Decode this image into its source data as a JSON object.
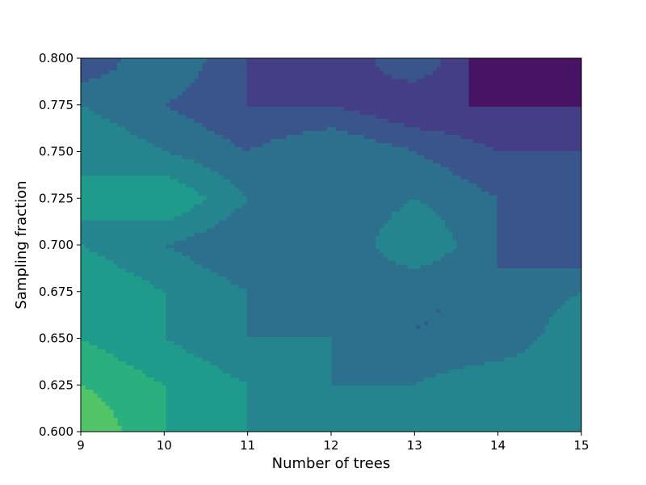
{
  "chart_data": {
    "type": "contourf",
    "title": "",
    "xlabel": "Number of trees",
    "ylabel": "Sampling fraction",
    "xlim": [
      9,
      15
    ],
    "ylim": [
      0.6,
      0.8
    ],
    "x": [
      9,
      10,
      11,
      12,
      13,
      14,
      15
    ],
    "y": [
      0.6,
      0.625,
      0.65,
      0.675,
      0.7,
      0.725,
      0.75,
      0.775,
      0.8
    ],
    "z": [
      [
        9,
        7,
        6,
        5,
        6,
        6,
        5
      ],
      [
        8,
        7,
        6,
        5,
        5,
        6,
        6
      ],
      [
        7,
        6,
        5,
        5,
        4,
        4,
        6
      ],
      [
        7,
        6,
        5,
        4,
        4,
        4,
        5
      ],
      [
        6,
        5,
        4,
        4,
        6,
        4,
        3
      ],
      [
        6,
        7,
        5,
        4,
        5,
        4,
        3
      ],
      [
        6,
        5,
        4,
        5,
        4,
        3,
        3
      ],
      [
        5,
        4,
        3,
        3,
        2,
        2,
        2
      ],
      [
        3,
        5,
        3,
        2,
        4,
        1,
        1
      ]
    ],
    "levels": [
      1,
      2,
      3,
      4,
      5,
      6,
      7,
      8,
      9,
      10
    ],
    "colormap": [
      "#471365",
      "#433e85",
      "#3a548c",
      "#2d708e",
      "#25858e",
      "#1e9b8a",
      "#2ab07f",
      "#52c569",
      "#86d549"
    ],
    "x_ticks": [
      "9",
      "10",
      "11",
      "12",
      "13",
      "14",
      "15"
    ],
    "y_ticks": [
      "0.600",
      "0.625",
      "0.650",
      "0.675",
      "0.700",
      "0.725",
      "0.750",
      "0.775",
      "0.800"
    ],
    "colorbar": false,
    "legend": false,
    "grid": false
  }
}
